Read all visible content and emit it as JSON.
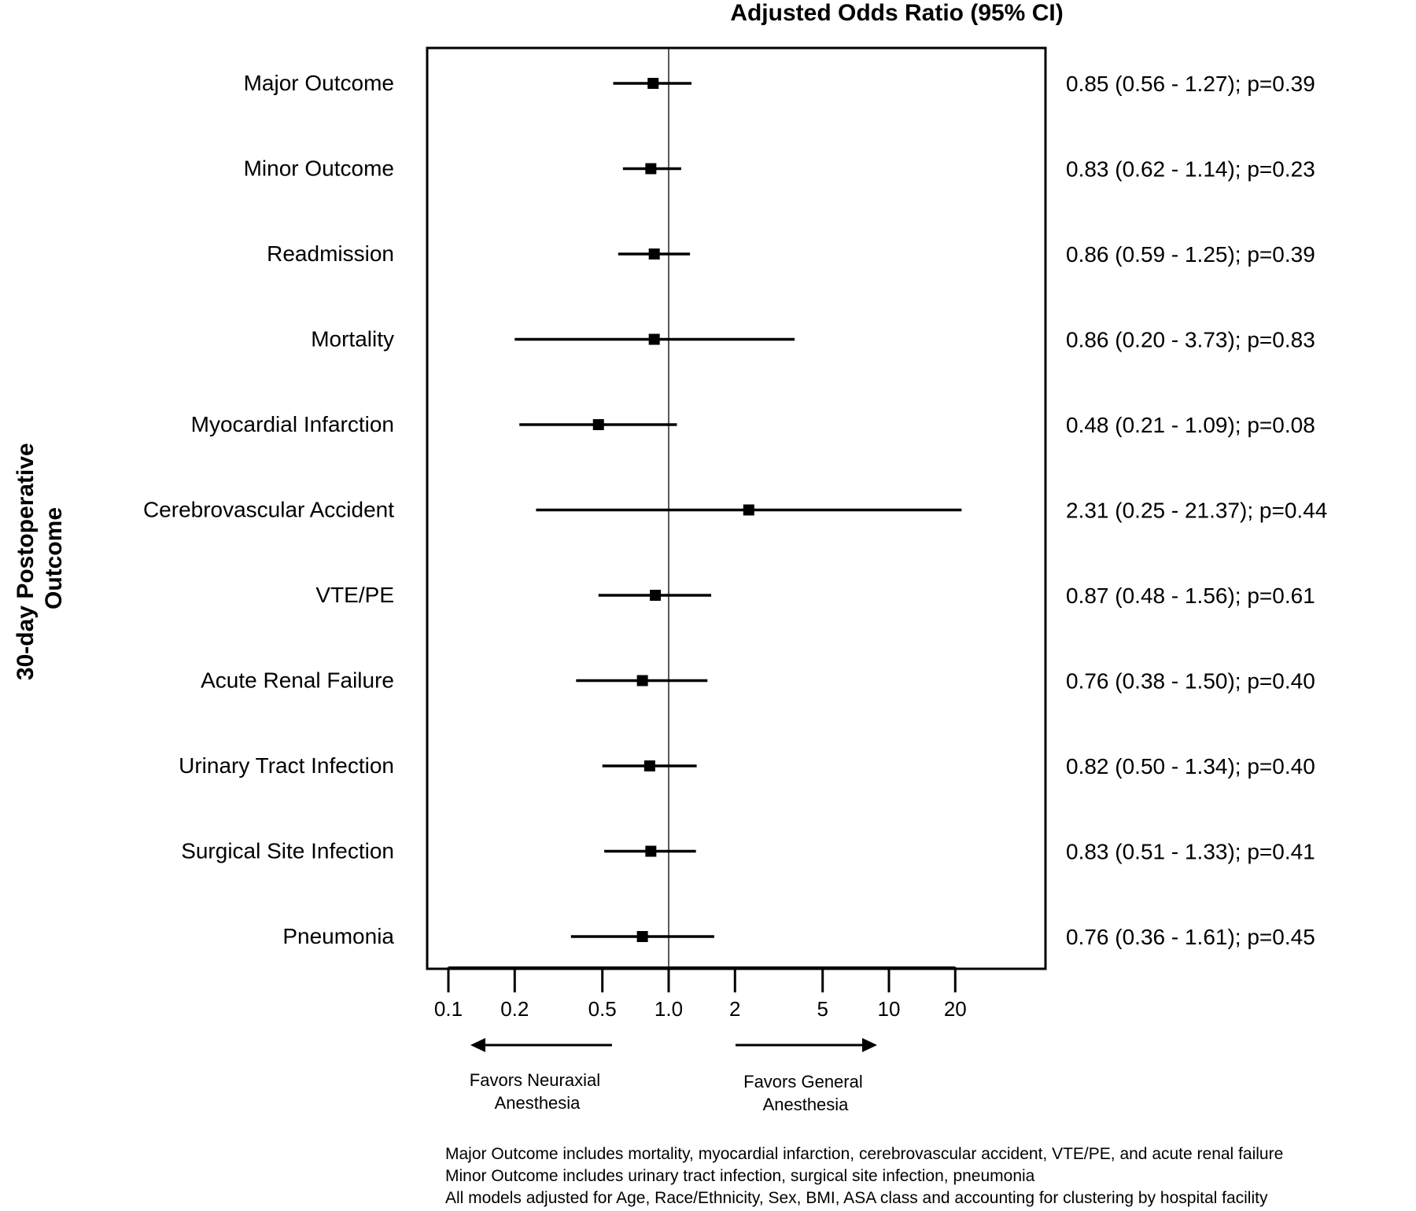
{
  "chart_data": {
    "type": "forest",
    "title": "Adjusted Odds Ratio (95% CI)",
    "ylabel_lines": [
      "30-day Postoperative",
      "Outcome"
    ],
    "x_scale": "log",
    "xlim": [
      0.1,
      20
    ],
    "reference_line": 1.0,
    "x_ticks": [
      {
        "value": 0.1,
        "label": "0.1"
      },
      {
        "value": 0.2,
        "label": "0.2"
      },
      {
        "value": 0.5,
        "label": "0.5"
      },
      {
        "value": 1.0,
        "label": "1.0"
      },
      {
        "value": 2,
        "label": "2"
      },
      {
        "value": 5,
        "label": "5"
      },
      {
        "value": 10,
        "label": "10"
      },
      {
        "value": 20,
        "label": "20"
      }
    ],
    "rows": [
      {
        "label": "Major Outcome",
        "or": 0.85,
        "lo": 0.56,
        "hi": 1.27,
        "text": "0.85 (0.56 - 1.27); p=0.39"
      },
      {
        "label": "Minor Outcome",
        "or": 0.83,
        "lo": 0.62,
        "hi": 1.14,
        "text": "0.83 (0.62 - 1.14); p=0.23"
      },
      {
        "label": "Readmission",
        "or": 0.86,
        "lo": 0.59,
        "hi": 1.25,
        "text": "0.86 (0.59 - 1.25); p=0.39"
      },
      {
        "label": "Mortality",
        "or": 0.86,
        "lo": 0.2,
        "hi": 3.73,
        "text": "0.86 (0.20 - 3.73); p=0.83"
      },
      {
        "label": "Myocardial Infarction",
        "or": 0.48,
        "lo": 0.21,
        "hi": 1.09,
        "text": "0.48 (0.21 - 1.09); p=0.08"
      },
      {
        "label": "Cerebrovascular Accident",
        "or": 2.31,
        "lo": 0.25,
        "hi": 21.37,
        "text": "2.31 (0.25 - 21.37); p=0.44"
      },
      {
        "label": "VTE/PE",
        "or": 0.87,
        "lo": 0.48,
        "hi": 1.56,
        "text": "0.87 (0.48 - 1.56); p=0.61"
      },
      {
        "label": "Acute Renal Failure",
        "or": 0.76,
        "lo": 0.38,
        "hi": 1.5,
        "text": "0.76 (0.38 - 1.50); p=0.40"
      },
      {
        "label": "Urinary Tract Infection",
        "or": 0.82,
        "lo": 0.5,
        "hi": 1.34,
        "text": "0.82 (0.50 - 1.34); p=0.40"
      },
      {
        "label": "Surgical Site Infection",
        "or": 0.83,
        "lo": 0.51,
        "hi": 1.33,
        "text": "0.83 (0.51 - 1.33); p=0.41"
      },
      {
        "label": "Pneumonia",
        "or": 0.76,
        "lo": 0.36,
        "hi": 1.61,
        "text": "0.76 (0.36 - 1.61); p=0.45"
      }
    ],
    "arrow_left_lines": [
      "Favors Neuraxial",
      "Anesthesia"
    ],
    "arrow_right_lines": [
      "Favors General",
      "Anesthesia"
    ],
    "footnotes": [
      "Major Outcome includes mortality, myocardial infarction, cerebrovascular accident, VTE/PE, and acute renal failure",
      "Minor Outcome includes urinary tract infection, surgical site infection, pneumonia",
      "All models adjusted for Age, Race/Ethnicity, Sex, BMI, ASA class and accounting for clustering by hospital facility"
    ]
  }
}
